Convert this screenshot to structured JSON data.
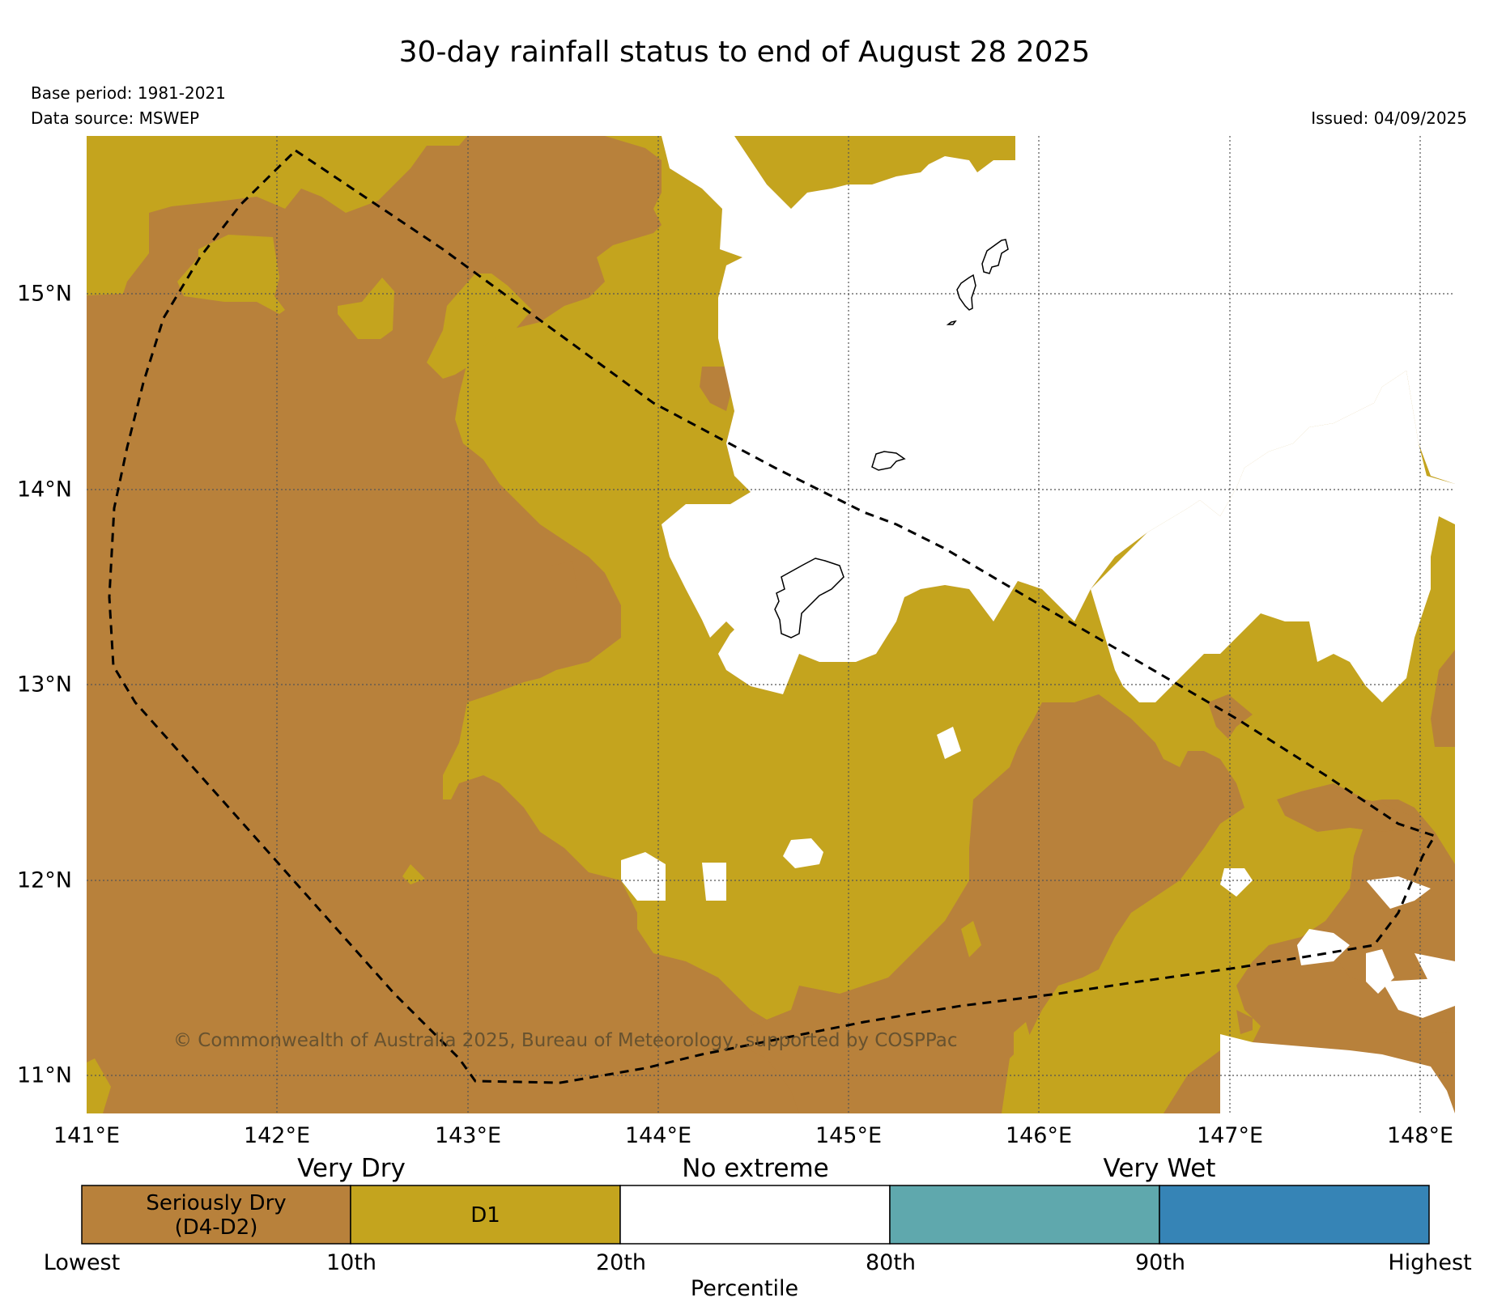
{
  "title": "30-day rainfall status to end of August 28 2025",
  "base_period": "Base period: 1981-2021",
  "data_source": "Data source: MSWEP",
  "issued": "Issued: 04/09/2025",
  "copyright": "© Commonwealth of Australia 2025, Bureau of Meteorology, supported by COSPPac",
  "map": {
    "lon_labels": [
      "141°E",
      "142°E",
      "143°E",
      "144°E",
      "145°E",
      "146°E",
      "147°E",
      "148°E"
    ],
    "lat_labels": [
      "15°N",
      "14°N",
      "13°N",
      "12°N",
      "11°N"
    ],
    "lon_range": [
      141.0,
      148.2
    ],
    "lat_range": [
      10.8,
      15.8
    ],
    "colors": {
      "seriously_dry": "#b8813b",
      "d1": "#c4a41e",
      "no_extreme": "#ffffff"
    }
  },
  "legend": {
    "band_labels": [
      "Very Dry",
      "No extreme",
      "Very Wet"
    ],
    "categories": [
      {
        "label": "Seriously Dry (D4-D2)",
        "color": "#b8813b"
      },
      {
        "label": "D1",
        "color": "#c4a41e"
      },
      {
        "label": "",
        "color": "#ffffff"
      },
      {
        "label": "",
        "color": "#5fa8ad"
      },
      {
        "label": "",
        "color": "#3684b6"
      }
    ],
    "ticks": [
      "Lowest",
      "10th",
      "20th",
      "80th",
      "90th",
      "Highest"
    ],
    "axis_label": "Percentile"
  }
}
